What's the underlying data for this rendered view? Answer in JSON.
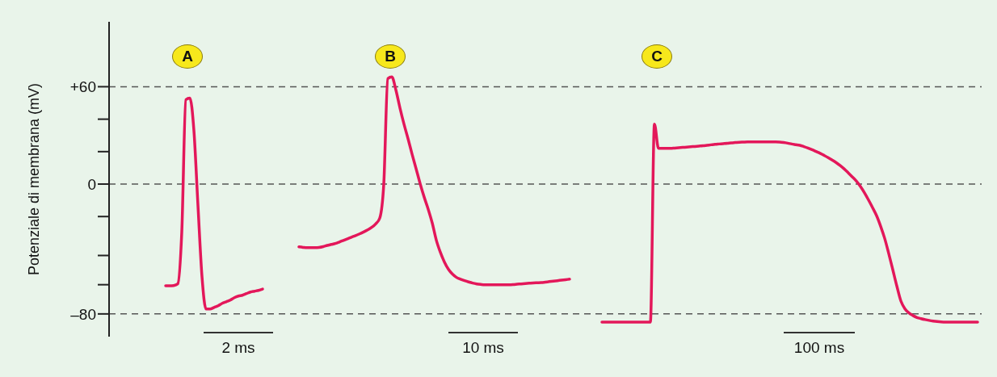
{
  "chart_data": {
    "type": "line",
    "ylabel": "Potenziale di membrana (mV)",
    "categories": [
      null,
      null,
      null,
      null,
      null,
      null,
      null,
      null,
      null,
      null,
      null,
      null,
      null,
      null,
      null,
      null,
      null,
      null,
      null,
      null,
      null,
      null,
      null,
      null,
      null,
      null,
      null,
      null,
      null,
      null,
      null,
      null,
      null,
      null,
      null,
      null,
      null,
      null,
      null,
      null,
      null,
      null,
      null,
      null,
      null,
      null,
      null,
      null,
      null,
      null,
      null,
      null,
      null,
      null,
      null,
      null,
      null,
      null,
      null,
      null,
      null,
      null,
      null,
      null,
      null,
      null,
      null,
      null,
      null,
      null,
      null,
      null,
      null,
      null,
      null,
      null,
      null,
      null,
      null,
      null,
      null,
      null,
      null,
      null,
      null,
      null,
      null,
      null,
      null,
      null,
      null,
      null,
      null,
      null,
      null,
      null,
      null,
      null,
      null,
      null,
      null,
      null,
      null,
      null,
      null,
      null,
      null,
      null,
      null,
      null,
      null,
      null,
      null,
      null,
      null,
      null,
      null,
      null,
      null,
      null,
      null,
      null,
      null,
      null,
      null,
      null,
      null,
      null,
      null,
      null,
      null,
      null,
      null,
      null,
      null,
      null,
      null,
      null,
      null,
      null,
      null,
      null,
      null,
      null,
      null,
      null,
      null,
      null,
      null,
      null,
      null,
      null,
      null,
      null,
      null,
      null,
      null,
      null,
      null,
      null,
      null,
      null,
      null,
      null,
      null,
      null,
      null,
      null,
      null,
      null,
      null,
      null,
      null,
      null,
      null,
      null,
      null,
      null,
      null,
      null,
      null,
      null,
      null,
      null,
      null,
      null,
      null,
      null,
      null,
      null,
      null,
      null,
      null,
      null,
      null,
      null,
      null,
      null,
      null,
      null,
      null,
      null,
      null,
      null,
      null,
      null,
      null,
      null,
      null,
      null,
      null,
      null,
      null,
      null,
      null
    ],
    "series": [
      {
        "color": "#e3175a",
        "values": [
          null,
          null,
          null,
          null,
          null,
          null,
          null,
          null,
          null,
          null,
          null,
          null,
          null,
          -62.7,
          -62.7,
          -62.5,
          -61.5,
          -29.5,
          52,
          53,
          33,
          -13,
          -57,
          -77,
          -77,
          -76,
          -75,
          -73.5,
          -72.5,
          -71.5,
          -70,
          -69,
          -68.5,
          -67.5,
          -66.5,
          -66,
          -65.5,
          -64.7,
          null,
          null,
          null,
          null,
          null,
          null,
          null,
          null,
          null,
          null,
          null,
          null,
          null,
          null,
          null,
          null,
          null,
          null,
          null,
          null,
          null,
          null,
          null,
          null,
          null,
          null,
          null,
          null,
          null,
          null,
          null,
          null,
          null,
          null,
          null,
          null,
          null,
          null,
          null,
          null,
          null,
          null,
          null,
          null,
          null,
          null,
          null,
          null,
          null,
          null,
          null,
          null,
          null,
          null,
          null,
          null,
          null,
          null,
          null,
          null,
          null,
          null,
          null,
          null,
          null,
          null,
          null,
          null,
          null,
          null,
          null,
          null,
          null,
          null,
          null,
          null,
          null,
          null,
          null,
          null,
          null,
          null,
          null,
          null,
          null,
          null,
          null,
          null,
          null,
          null,
          null,
          null,
          null,
          null,
          null,
          null,
          null,
          null,
          null,
          null,
          null,
          null,
          null,
          null,
          null,
          null,
          null,
          null,
          null,
          null,
          null,
          null,
          null,
          null,
          null,
          null,
          null,
          null,
          null,
          null,
          null,
          null,
          null,
          null,
          null,
          null,
          null,
          null,
          null,
          null,
          null,
          null,
          null,
          null,
          null,
          null,
          null,
          null,
          null,
          null,
          null,
          null,
          null,
          null,
          null,
          null,
          null,
          null,
          null,
          null,
          null,
          null,
          null,
          null,
          null,
          null,
          null,
          null,
          null,
          null,
          null,
          null,
          null,
          null,
          null,
          null,
          null,
          null,
          null,
          null,
          null,
          null,
          null,
          null,
          null,
          null,
          null
        ]
      },
      {
        "color": "#e3175a",
        "values": [
          null,
          null,
          null,
          null,
          null,
          null,
          null,
          null,
          null,
          null,
          null,
          null,
          null,
          null,
          null,
          null,
          null,
          null,
          null,
          null,
          null,
          null,
          null,
          null,
          null,
          null,
          null,
          null,
          null,
          null,
          null,
          null,
          null,
          null,
          null,
          null,
          null,
          null,
          null,
          null,
          null,
          null,
          null,
          null,
          null,
          null,
          -38.7,
          -39,
          -39.2,
          -39.2,
          -39.2,
          -39,
          -38.5,
          -37.8,
          -37.2,
          -36.6,
          -35.7,
          -34.7,
          -33.7,
          -32.7,
          -31.8,
          -30.7,
          -29.5,
          -28.2,
          -26.7,
          -24.5,
          -21,
          0,
          65,
          66,
          58,
          47,
          37,
          28,
          18.5,
          9.5,
          0.3,
          -8,
          -15.5,
          -24,
          -34.5,
          -42,
          -48,
          -52.5,
          -55.5,
          -57.5,
          -58.6,
          -59.5,
          -60.3,
          -61,
          -61.5,
          -61.8,
          -62,
          -62,
          -62,
          -62,
          -62,
          -62,
          -62,
          -61.9,
          -61.7,
          -61.5,
          -61.3,
          -61.1,
          -60.9,
          -60.8,
          -60.7,
          -60.4,
          -60.1,
          -59.8,
          -59.5,
          -59.2,
          -58.9,
          -58.6,
          null,
          null,
          null,
          null,
          null,
          null,
          null,
          null,
          null,
          null,
          null,
          null,
          null,
          null,
          null,
          null,
          null,
          null,
          null,
          null,
          null,
          null,
          null,
          null,
          null,
          null,
          null,
          null,
          null,
          null,
          null,
          null,
          null,
          null,
          null,
          null,
          null,
          null,
          null,
          null,
          null,
          null,
          null,
          null,
          null,
          null,
          null,
          null,
          null,
          null,
          null,
          null,
          null,
          null,
          null,
          null,
          null,
          null,
          null,
          null,
          null,
          null,
          null,
          null,
          null,
          null,
          null,
          null,
          null,
          null,
          null,
          null,
          null,
          null,
          null,
          null,
          null,
          null,
          null,
          null,
          null,
          null,
          null,
          null,
          null,
          null,
          null,
          null,
          null,
          null,
          null,
          null,
          null,
          null,
          null,
          null,
          null,
          null,
          null,
          null,
          null
        ]
      },
      {
        "color": "#e3175a",
        "values": [
          null,
          null,
          null,
          null,
          null,
          null,
          null,
          null,
          null,
          null,
          null,
          null,
          null,
          null,
          null,
          null,
          null,
          null,
          null,
          null,
          null,
          null,
          null,
          null,
          null,
          null,
          null,
          null,
          null,
          null,
          null,
          null,
          null,
          null,
          null,
          null,
          null,
          null,
          null,
          null,
          null,
          null,
          null,
          null,
          null,
          null,
          null,
          null,
          null,
          null,
          null,
          null,
          null,
          null,
          null,
          null,
          null,
          null,
          null,
          null,
          null,
          null,
          null,
          null,
          null,
          null,
          null,
          null,
          null,
          null,
          null,
          null,
          null,
          null,
          null,
          null,
          null,
          null,
          null,
          null,
          null,
          null,
          null,
          null,
          null,
          null,
          null,
          null,
          null,
          null,
          null,
          null,
          null,
          null,
          null,
          null,
          null,
          null,
          null,
          null,
          null,
          null,
          null,
          null,
          null,
          null,
          null,
          null,
          null,
          null,
          null,
          null,
          null,
          null,
          null,
          null,
          null,
          null,
          null,
          null,
          null,
          -85,
          -85,
          -85,
          -85,
          -85,
          -85,
          -85,
          -85,
          -85,
          -85,
          -85,
          -85,
          -85,
          37,
          22,
          22,
          22,
          22,
          22.2,
          22.4,
          22.6,
          22.8,
          23,
          23.2,
          23.4,
          23.6,
          23.9,
          24.2,
          24.5,
          24.7,
          24.9,
          25.1,
          25.4,
          25.6,
          25.8,
          25.9,
          26,
          26,
          26,
          26,
          26,
          26,
          26,
          26,
          25.9,
          25.6,
          25.2,
          24.7,
          24.3,
          23.9,
          23.1,
          22.2,
          21.2,
          20.1,
          19,
          17.7,
          16.3,
          14.8,
          13.2,
          11.4,
          9.3,
          6.9,
          4.4,
          1.8,
          -1.5,
          -5.4,
          -9.8,
          -14.5,
          -19.5,
          -26,
          -33.5,
          -42.8,
          -52.7,
          -62.8,
          -72,
          -76.8,
          -79.4,
          -81,
          -82.2,
          -82.9,
          -83.5,
          -84,
          -84.4,
          -84.7,
          -84.9,
          -85,
          -85,
          -85,
          -85,
          -85,
          -85,
          -85,
          -85,
          -85
        ]
      }
    ],
    "ylim": [
      -94,
      100
    ],
    "yticks": [
      {
        "value": 60,
        "label": "+60"
      },
      {
        "value": 40,
        "label": null
      },
      {
        "value": 20,
        "label": null
      },
      0,
      {
        "value": -20,
        "label": null
      },
      {
        "value": -44,
        "label": null
      },
      {
        "value": -62,
        "label": null
      },
      {
        "value": -80,
        "label": "–80"
      }
    ],
    "tick_labels": "y",
    "line_style": "solid",
    "ref_lines": [
      {
        "axis": "y",
        "value": 60,
        "color": "#555555",
        "line_style": "dashed"
      },
      {
        "axis": "y",
        "value": 0,
        "color": "#555555",
        "line_style": "dashed"
      },
      {
        "axis": "y",
        "value": -80,
        "color": "#555555",
        "line_style": "dashed"
      }
    ],
    "annotations": [
      "A",
      "B",
      "C",
      "2 ms",
      "10 ms",
      "100 ms"
    ]
  }
}
